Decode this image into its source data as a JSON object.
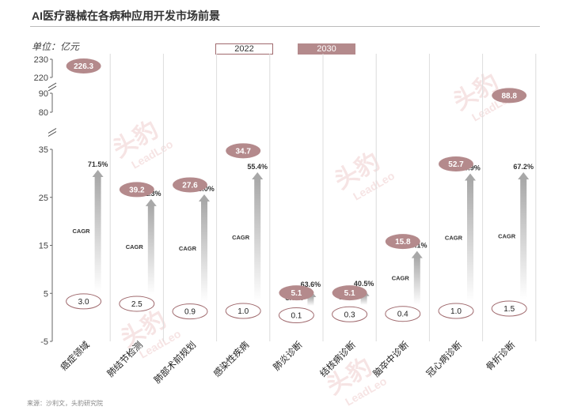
{
  "title": "AI医疗器械在各病种应用开发市场前景",
  "unit_label": "单位：亿元",
  "source": "来源：沙利文，头豹研究院",
  "watermark": {
    "cn": "头豹",
    "en": "LeadLeo"
  },
  "colors": {
    "bubble_2030": "#b48a8c",
    "ellipse_2022_border": "#a06a6e",
    "arrow": "#b8b8b8"
  },
  "chart_data": {
    "type": "bar",
    "legend": [
      "2022",
      "2030"
    ],
    "y_ticks": [
      "230",
      "220",
      "90",
      "80",
      "35",
      "25",
      "15",
      "5",
      "-5"
    ],
    "y_axis_breaks": [
      [
        90,
        220
      ],
      [
        35,
        80
      ]
    ],
    "categories": [
      "癌症领域",
      "肺结节检测",
      "肺部术前规划",
      "感染性疾病",
      "肺炎诊断",
      "结核病诊断",
      "脑卒中诊断",
      "冠心病诊断",
      "骨折诊断"
    ],
    "series": [
      {
        "name": "2022",
        "values": [
          3.0,
          2.5,
          0.9,
          1.0,
          0.1,
          0.3,
          0.4,
          1.0,
          1.5
        ],
        "labels": [
          "3.0",
          "2.5",
          "0.9",
          "1.0",
          "0.1",
          "0.3",
          "0.4",
          "1.0",
          "1.5"
        ]
      },
      {
        "name": "2030",
        "values": [
          226.3,
          39.2,
          27.6,
          34.7,
          5.1,
          5.1,
          15.8,
          52.7,
          88.8
        ],
        "labels": [
          "226.3",
          "39.2",
          "27.6",
          "34.7",
          "5.1",
          "5.1",
          "15.8",
          "52.7",
          "88.8"
        ]
      }
    ],
    "cagr": [
      "71.5%",
      "41.3%",
      "53.0%",
      "55.4%",
      "63.6%",
      "40.5%",
      "59.1%",
      "63.9%",
      "67.2%"
    ],
    "cagr_label": "CAGR"
  }
}
